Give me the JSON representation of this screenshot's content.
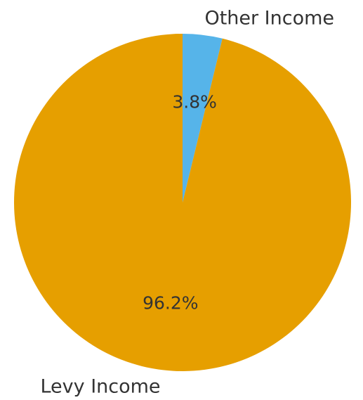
{
  "chart_data": {
    "type": "pie",
    "slices": [
      {
        "label": "Other Income",
        "value": 3.8,
        "pct_label": "3.8%",
        "color": "#56B4E9"
      },
      {
        "label": "Levy Income",
        "value": 96.2,
        "pct_label": "96.2%",
        "color": "#E69F00"
      }
    ],
    "start_angle": "12 o'clock",
    "direction": "clockwise",
    "legend": "none"
  }
}
